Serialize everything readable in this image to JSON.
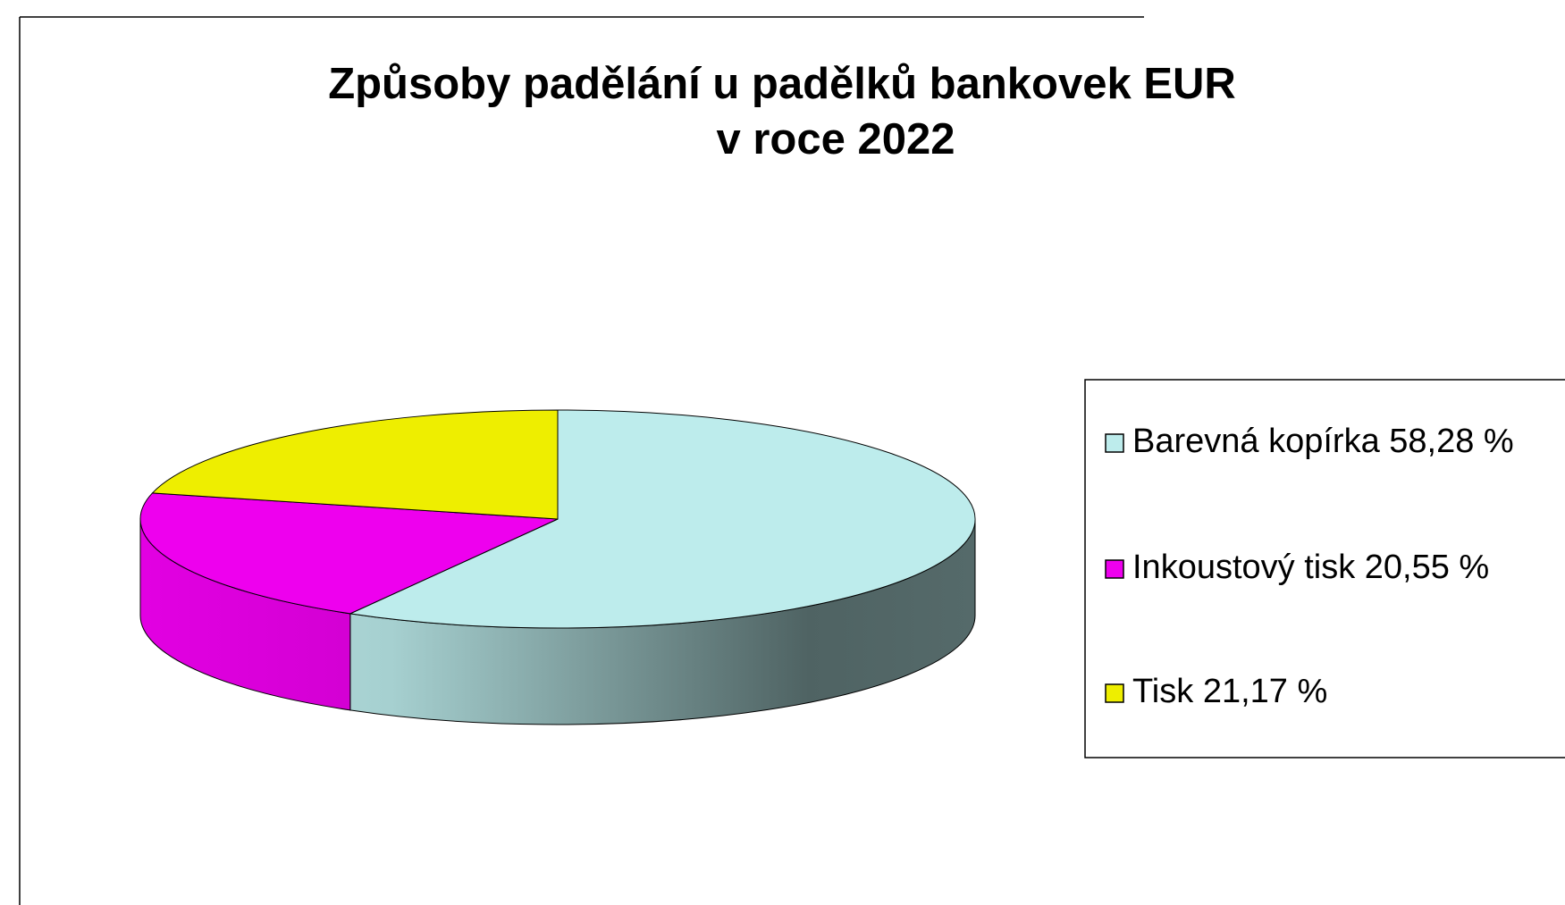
{
  "chart_data": {
    "type": "pie3d",
    "title": [
      "Způsoby padělání u padělků bankovek EUR",
      "v roce 2022"
    ],
    "categories": [
      "Barevná kopírka",
      "Inkoustový tisk",
      "Tisk"
    ],
    "values": [
      58.28,
      20.55,
      21.17
    ],
    "value_labels": [
      "58,28 %",
      "20,55 %",
      "21,17 %"
    ],
    "colors": [
      "#bdecec",
      "#ee00ee",
      "#eeee00"
    ],
    "legend": "right"
  }
}
